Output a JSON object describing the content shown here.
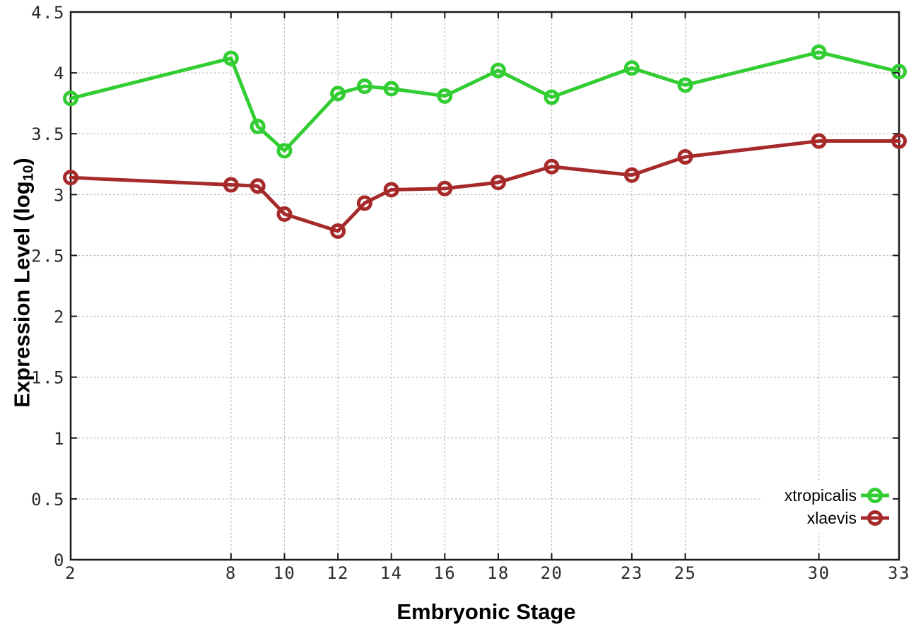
{
  "chart_data": {
    "type": "line",
    "title": "",
    "xlabel": "Embryonic Stage",
    "ylabel": "Expression Level (log10)",
    "ylabel_parts": {
      "prefix": "Expression Level (log",
      "subscript": "10",
      "suffix": ")"
    },
    "x": [
      2,
      8,
      9,
      10,
      12,
      13,
      14,
      16,
      18,
      20,
      23,
      25,
      30,
      33
    ],
    "series": [
      {
        "name": "xtropicalis",
        "color": "#32cd32",
        "values": [
          3.79,
          4.12,
          3.56,
          3.36,
          3.83,
          3.89,
          3.87,
          3.81,
          4.02,
          3.8,
          4.04,
          3.9,
          4.17,
          4.01
        ]
      },
      {
        "name": "xlaevis",
        "color": "#a62a2a",
        "values": [
          3.14,
          3.08,
          3.07,
          2.84,
          2.7,
          2.93,
          3.04,
          3.05,
          3.1,
          3.23,
          3.16,
          3.31,
          3.44,
          3.44
        ]
      }
    ],
    "xlim": [
      2,
      33
    ],
    "ylim": [
      0,
      4.5
    ],
    "x_ticks": [
      2,
      8,
      10,
      12,
      14,
      16,
      18,
      20,
      23,
      25,
      30,
      33
    ],
    "x_tick_labels": [
      "2",
      "8",
      "10",
      "12",
      "14",
      "16",
      "18",
      "20",
      "23",
      "25",
      "30",
      "33"
    ],
    "y_ticks": [
      0,
      0.5,
      1,
      1.5,
      2,
      2.5,
      3,
      3.5,
      4,
      4.5
    ],
    "y_tick_labels": [
      "0",
      "0.5",
      "1",
      "1.5",
      "2",
      "2.5",
      "3",
      "3.5",
      "4",
      "4.5"
    ],
    "grid": true,
    "grid_style": "dotted",
    "legend_position": "bottom-right-inside",
    "marker": "open-circle",
    "line_width": 5,
    "marker_radius": 8.5,
    "marker_stroke": 5,
    "colors": {
      "background": "#ffffff",
      "grid": "#b9b9b9",
      "border": "#1a1a1a",
      "tick_label": "#2b2b2b",
      "axis_title": "#000000",
      "legend_text": "#000000"
    }
  }
}
